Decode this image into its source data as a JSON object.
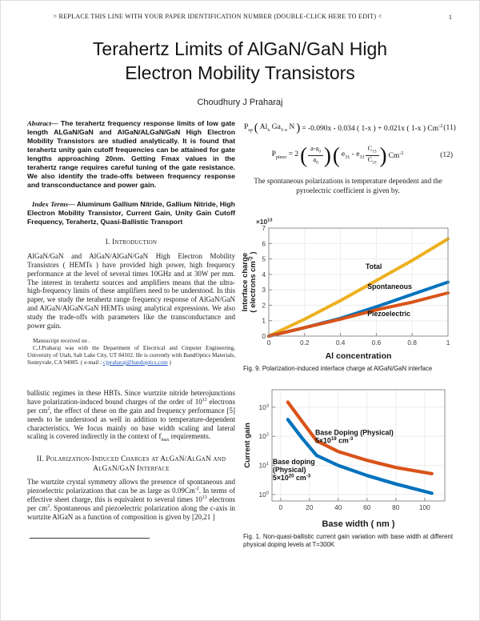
{
  "header": {
    "running_title": "> REPLACE THIS LINE WITH YOUR PAPER IDENTIFICATION NUMBER (DOUBLE-CLICK HERE TO EDIT) <",
    "page_number": "1"
  },
  "title": "Terahertz Limits of AlGaN/GaN High Electron Mobility Transistors",
  "author": "Choudhury J Praharaj",
  "abstract": {
    "label": "Abstract—",
    "text": " The terahertz frequency response limits of low gate length ALGaN/GaN and AlGaN/ALGaN/GaN High Electron Mobility Transistors are studied analytically. It is found that terahertz unity gain cutoff frequencies can be attained for gate lengths approaching 20nm. Getting Fmax values in the terahertz range requires careful tuning of the gate resistance. We also identify the trade-offs between frequency response and transconductance and power gain."
  },
  "index_terms": {
    "label": "Index Terms—",
    "text": " Aluminum Gallium Nitride, Gallium Nitride, High Electron Mobility Transistor, Current Gain, Unity Gain Cutoff Frequency, Terahertz, Quasi-Ballistic Transport"
  },
  "sections": {
    "s1_heading": "I. Introduction",
    "s1_para": "AlGaN/GaN and AlGaN/AlGaN/GaN High Electron Mobility Transistors ( HEMTs ) have provided high power, high frequency performance at the level of several times 10GHz and at 30W per mm. The interest in terahertz sources and amplifiers means that the ultra-high-frequency limits of these amplifiers need to be understood. In this paper, we study the terahertz range frequency response of AlGaN/GaN and AlGaN/AlGaN/GaN HEMTs using analytical expressions. We also study the trade-offs with parameters like the transconductance and power gain.",
    "s2_para1": "ballistic regimes in these HBTs. Since wurtzite nitride heterojunctions have polarization-induced bound charges of the order of 10^{13} electrons per cm^{2}, the effect of these on the gain and frequency performance [5] needs to be understood as well in addition to temperature-dependent characteristics. We focus mainly on base width scaling and lateral scaling is covered indirectly in the context of f_{max} requirements.",
    "s2_heading": "II. Polarization-Induced Charges at AlGaN/AlGaN and AlGaN/GaN Interface",
    "s2_para2": "The wurtzite crystal symmetry allows the presence of spontaneous and piezoelectric polarizations that can be as large as 0.09Cm^{-2}. In terms of effective sheet charge, this is equivalent to several times 10^{13} electrons per cm^{2}. Spontaneous and piezoelectric polarization along the c-axis in wurtzite AlGaN as a function of composition is given by [20,21 ]"
  },
  "footnote": {
    "line1": "Manuscript received on .",
    "line2_pre": "C.J.Praharaj was with the Department of Electrical and Cmputer Engineering, University of Utah, Salt Lake City, UT 84102. He is currently with BandOptics Materials, Sunnyvale, CA 94085. ( e-mail : ",
    "email": "cjpraharaj@bandoptics.com",
    "line2_post": " )"
  },
  "equations": {
    "paren_open": "(",
    "paren_close": ")",
    "eq11": {
      "lhs": "P_{sp}",
      "arg": "Al_{x} Ga_{1-x} N",
      "rhs": "= -0.090x - 0.034 ( 1-x ) + 0.021x ( 1-x )  Cm^{-2}",
      "number": "(11)"
    },
    "eq12": {
      "lhs": "P_{piezo} = 2",
      "f1n": "a-a_{0}",
      "f1d": "a_{0}",
      "mid": "e_{31} - e_{33}",
      "f2n": "C_{13}",
      "f2d": "C_{33}",
      "unit": "Cm^{-2}",
      "number": "(12)"
    }
  },
  "note_text": "The spontaneous polarizations is temperature dependent and the pyroelectric coefficient is given by.",
  "captions": {
    "fig9": "Fig. 9. Polarization-induced interface charge at AlGaN/GaN interface",
    "fig1": "Fig. 1. Non-quasi-ballistic current gain variation with base width at different physical doping levels at T=300K"
  },
  "chart_data": [
    {
      "id": "fig9",
      "type": "line",
      "title": "",
      "xlabel": "Al concentration",
      "ylabel_lines": [
        "Interface charge",
        "( electrons cm^{-2} )"
      ],
      "y_multiplier": "×10^{13}",
      "xlim": [
        0,
        1
      ],
      "ylim": [
        0,
        7
      ],
      "grid": true,
      "legend_position": "inline-labels",
      "xticks": [
        {
          "v": 0,
          "label": "0"
        },
        {
          "v": 0.2,
          "label": "0.2"
        },
        {
          "v": 0.4,
          "label": "0.4"
        },
        {
          "v": 0.6,
          "label": "0.6"
        },
        {
          "v": 0.8,
          "label": "0.8"
        },
        {
          "v": 1,
          "label": "1"
        }
      ],
      "yticks": [
        {
          "v": 0,
          "label": "0"
        },
        {
          "v": 1,
          "label": "1"
        },
        {
          "v": 2,
          "label": "2"
        },
        {
          "v": 3,
          "label": "3"
        },
        {
          "v": 4,
          "label": "4"
        },
        {
          "v": 5,
          "label": "5"
        },
        {
          "v": 6,
          "label": "6"
        },
        {
          "v": 7,
          "label": "7"
        }
      ],
      "x": [
        0,
        0.2,
        0.4,
        0.6,
        0.8,
        1.0
      ],
      "series": [
        {
          "name": "Total",
          "color": "#EDB120",
          "line_width": 4,
          "values": [
            0,
            1.1,
            2.3,
            3.6,
            4.9,
            6.3
          ],
          "label_lines": [
            "Total"
          ],
          "label_pos": [
            0.54,
            4.35
          ]
        },
        {
          "name": "Spontaneous",
          "color": "#0072BD",
          "line_width": 4,
          "values": [
            0,
            0.55,
            1.15,
            1.9,
            2.7,
            3.5
          ],
          "label_lines": [
            "Spontaneous"
          ],
          "label_pos": [
            0.55,
            3.05
          ]
        },
        {
          "name": "Piezoelectric",
          "color": "#D95319",
          "line_width": 4,
          "values": [
            0,
            0.55,
            1.1,
            1.7,
            2.2,
            2.8
          ],
          "label_lines": [
            "Piezoelectric"
          ],
          "label_pos": [
            0.55,
            1.3
          ]
        }
      ]
    },
    {
      "id": "fig1",
      "type": "line",
      "title": "",
      "xlabel": "Base width ( nm )",
      "ylabel_lines": [
        "Current gain"
      ],
      "yscale": "log",
      "xlim": [
        -6,
        114
      ],
      "ylim": [
        0.6,
        4000
      ],
      "grid": true,
      "legend_position": "inline-labels",
      "xticks": [
        {
          "v": 0,
          "label": "0"
        },
        {
          "v": 20,
          "label": "20"
        },
        {
          "v": 40,
          "label": "40"
        },
        {
          "v": 60,
          "label": "60"
        },
        {
          "v": 80,
          "label": "80"
        },
        {
          "v": 100,
          "label": "100"
        }
      ],
      "yticks": [
        {
          "v": 1,
          "label": "10^{0}"
        },
        {
          "v": 10,
          "label": "10^{1}"
        },
        {
          "v": 100,
          "label": "10^{2}"
        },
        {
          "v": 1000,
          "label": "10^{3}"
        }
      ],
      "x": [
        5,
        15,
        25,
        40,
        60,
        80,
        105
      ],
      "series": [
        {
          "name": "Base doping (Physical) 5×10^20 cm^-3",
          "color": "#0072BD",
          "line_width": 4.2,
          "values": [
            380,
            85,
            22,
            10,
            4.5,
            2.3,
            1.1
          ],
          "label_lines": [
            "Base doping",
            "(Physical)",
            "5×10^{20} cm^{-3}"
          ],
          "label_pos": [
            -5.5,
            11
          ]
        },
        {
          "name": "Base Doping (Physical) 5×10^19 cm^-3",
          "color": "#D95319",
          "line_width": 4.2,
          "values": [
            1500,
            320,
            70,
            30,
            15,
            8.5,
            5.2
          ],
          "label_lines": [
            "Base Doping (Physical)",
            "5×10^{19} cm^{-3}"
          ],
          "label_pos": [
            24,
            110
          ]
        }
      ]
    }
  ]
}
